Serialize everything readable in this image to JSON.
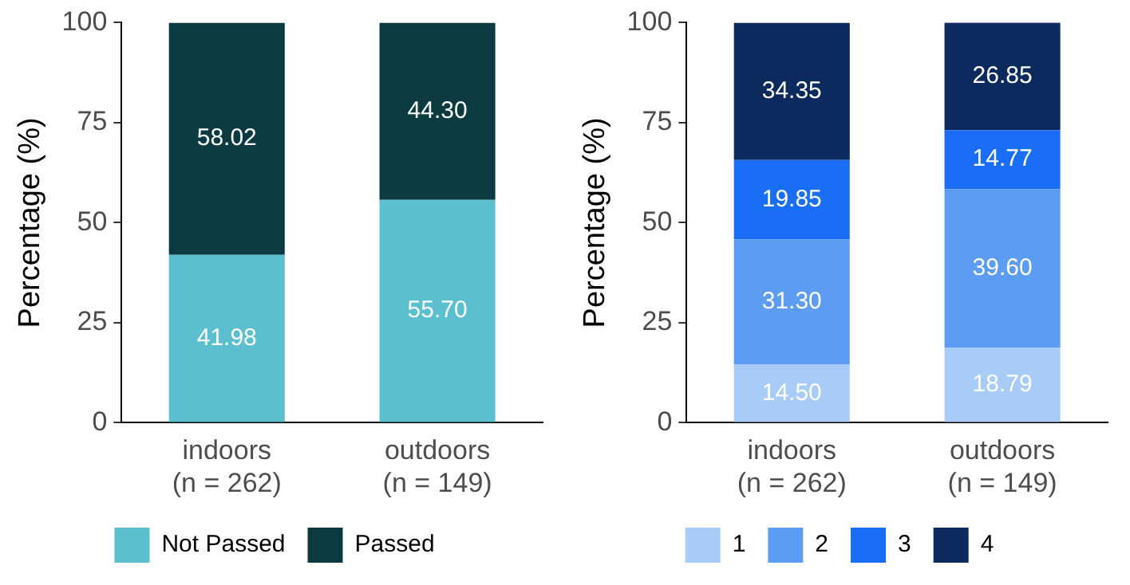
{
  "chart_data": [
    {
      "type": "bar",
      "stacked": true,
      "ylabel": "Percentage (%)",
      "categories": [
        "indoors\n(n = 262)",
        "outdoors\n(n = 149)"
      ],
      "ylim": [
        0,
        100
      ],
      "yticks": [
        0,
        25,
        50,
        75,
        100
      ],
      "grid": false,
      "legend": "bottom",
      "series": [
        {
          "name": "Not Passed",
          "color": "#5bbfcf",
          "values": [
            41.98,
            55.7
          ],
          "value_labels": [
            "41.98",
            "55.70"
          ]
        },
        {
          "name": "Passed",
          "color": "#0b3b40",
          "values": [
            58.02,
            44.3
          ],
          "value_labels": [
            "58.02",
            "44.30"
          ]
        }
      ]
    },
    {
      "type": "bar",
      "stacked": true,
      "ylabel": "Percentage (%)",
      "categories": [
        "indoors\n(n = 262)",
        "outdoors\n(n = 149)"
      ],
      "ylim": [
        0,
        100
      ],
      "yticks": [
        0,
        25,
        50,
        75,
        100
      ],
      "grid": false,
      "legend": "bottom",
      "series": [
        {
          "name": "1",
          "color": "#a9cbf7",
          "values": [
            14.5,
            18.79
          ],
          "value_labels": [
            "14.50",
            "18.79"
          ]
        },
        {
          "name": "2",
          "color": "#5c9cf2",
          "values": [
            31.3,
            39.6
          ],
          "value_labels": [
            "31.30",
            "39.60"
          ]
        },
        {
          "name": "3",
          "color": "#1a6ef5",
          "values": [
            19.85,
            14.77
          ],
          "value_labels": [
            "19.85",
            "14.77"
          ]
        },
        {
          "name": "4",
          "color": "#0c2a5e",
          "values": [
            34.35,
            26.85
          ],
          "value_labels": [
            "34.35",
            "26.85"
          ]
        }
      ]
    }
  ]
}
